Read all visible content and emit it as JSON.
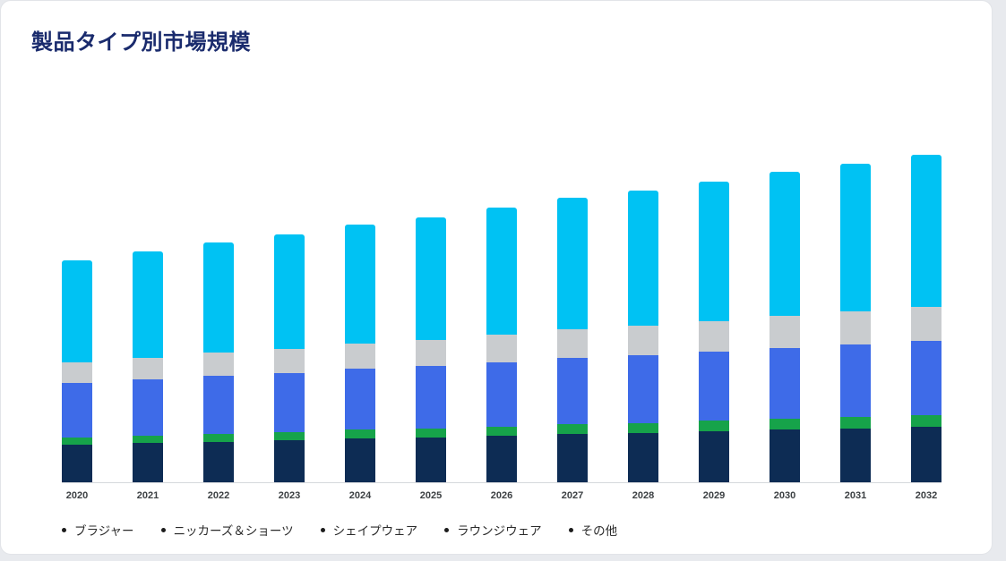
{
  "page": {
    "background": "#e8eaee",
    "card_background": "#ffffff"
  },
  "header": {
    "title": "製品タイプ別市場規模",
    "title_color": "#1a2b6d"
  },
  "chart_data": {
    "type": "bar",
    "stacked": true,
    "title": "製品タイプ別市場規模",
    "xlabel": "",
    "ylabel": "",
    "y_axis_visible": false,
    "ylim": [
      0,
      400
    ],
    "legend_position": "bottom",
    "axis_line_color": "#d5d8dc",
    "categories": [
      "2020",
      "2021",
      "2022",
      "2023",
      "2024",
      "2025",
      "2026",
      "2027",
      "2028",
      "2029",
      "2030",
      "2031",
      "2032"
    ],
    "series": [
      {
        "name": "ブラジャー",
        "color": "#0d2c54",
        "values": [
          42,
          44,
          45,
          47,
          49,
          50,
          52,
          54,
          55,
          57,
          59,
          60,
          62
        ]
      },
      {
        "name": "ニッカーズ＆ショーツ",
        "color": "#16a34a",
        "values": [
          8,
          8,
          9,
          9,
          10,
          10,
          10,
          11,
          11,
          12,
          12,
          13,
          13
        ]
      },
      {
        "name": "シェイプウェア",
        "color": "#3e6be8",
        "values": [
          61,
          63,
          65,
          66,
          68,
          70,
          72,
          74,
          76,
          77,
          79,
          81,
          83
        ]
      },
      {
        "name": "ラウンジウェア",
        "color": "#c9cccf",
        "values": [
          23,
          24,
          26,
          27,
          28,
          29,
          31,
          32,
          33,
          34,
          36,
          37,
          38
        ]
      },
      {
        "name": "その他",
        "color": "#00c2f3",
        "values": [
          114,
          119,
          123,
          128,
          133,
          137,
          142,
          147,
          151,
          156,
          161,
          165,
          170
        ]
      }
    ]
  },
  "legend": {
    "bullet_color": "#1c1c1c",
    "items": [
      "ブラジャー",
      "ニッカーズ＆ショーツ",
      "シェイプウェア",
      "ラウンジウェア",
      "その他"
    ]
  }
}
